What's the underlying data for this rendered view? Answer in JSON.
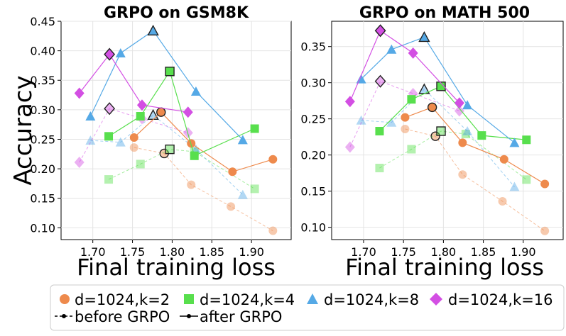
{
  "chart_data": [
    {
      "type": "scatter",
      "title": "GRPO on GSM8K",
      "xlabel": "Final training loss",
      "ylabel": "Accuracy",
      "xlim": [
        1.66,
        1.95
      ],
      "ylim": [
        0.08,
        0.45
      ],
      "xticks": [
        "1.70",
        "1.75",
        "1.80",
        "1.85",
        "1.90"
      ],
      "xtick_values": [
        1.7,
        1.75,
        1.8,
        1.85,
        1.9
      ],
      "yticks": [
        "0.10",
        "0.15",
        "0.20",
        "0.25",
        "0.30",
        "0.35",
        "0.40",
        "0.45"
      ],
      "ytick_values": [
        0.1,
        0.15,
        0.2,
        0.25,
        0.3,
        0.35,
        0.4,
        0.45
      ],
      "grid": true,
      "series": [
        {
          "name": "d=1024,k=2",
          "stage": "before GRPO",
          "color": "#ee8a4c",
          "marker": "circle",
          "x": [
            1.752,
            1.79,
            1.824,
            1.874,
            1.927
          ],
          "y": [
            0.236,
            0.226,
            0.173,
            0.136,
            0.095
          ],
          "best": 1
        },
        {
          "name": "d=1024,k=2",
          "stage": "after GRPO",
          "color": "#ee8a4c",
          "marker": "circle",
          "x": [
            1.752,
            1.786,
            1.824,
            1.876,
            1.927
          ],
          "y": [
            0.253,
            0.296,
            0.243,
            0.195,
            0.216
          ],
          "best": 1
        },
        {
          "name": "d=1024,k=4",
          "stage": "before GRPO",
          "color": "#58df4d",
          "marker": "square",
          "x": [
            1.72,
            1.76,
            1.797,
            1.828,
            1.904
          ],
          "y": [
            0.182,
            0.208,
            0.233,
            0.229,
            0.166
          ],
          "best": 2
        },
        {
          "name": "d=1024,k=4",
          "stage": "after GRPO",
          "color": "#58df4d",
          "marker": "square",
          "x": [
            1.72,
            1.76,
            1.797,
            1.828,
            1.904
          ],
          "y": [
            0.255,
            0.289,
            0.365,
            0.222,
            0.268
          ],
          "best": 2
        },
        {
          "name": "d=1024,k=8",
          "stage": "before GRPO",
          "color": "#55a9e6",
          "marker": "triangle",
          "x": [
            1.697,
            1.735,
            1.776,
            1.83,
            1.889
          ],
          "y": [
            0.248,
            0.245,
            0.291,
            0.233,
            0.156
          ],
          "best": 2
        },
        {
          "name": "d=1024,k=8",
          "stage": "after GRPO",
          "color": "#55a9e6",
          "marker": "triangle",
          "x": [
            1.697,
            1.735,
            1.776,
            1.83,
            1.889
          ],
          "y": [
            0.289,
            0.396,
            0.434,
            0.331,
            0.249
          ],
          "best": 2
        },
        {
          "name": "d=1024,k=16",
          "stage": "before GRPO",
          "color": "#d34fe3",
          "marker": "diamond",
          "x": [
            1.683,
            1.721,
            1.762,
            1.82
          ],
          "y": [
            0.211,
            0.302,
            0.285,
            0.261
          ],
          "best": 1
        },
        {
          "name": "d=1024,k=16",
          "stage": "after GRPO",
          "color": "#d34fe3",
          "marker": "diamond",
          "x": [
            1.683,
            1.721,
            1.762,
            1.82
          ],
          "y": [
            0.328,
            0.394,
            0.308,
            0.296
          ],
          "best": 1
        }
      ]
    },
    {
      "type": "scatter",
      "title": "GRPO on MATH 500",
      "xlabel": "Final training loss",
      "ylabel": "",
      "xlim": [
        1.66,
        1.95
      ],
      "ylim": [
        0.083,
        0.385
      ],
      "xticks": [
        "1.70",
        "1.75",
        "1.80",
        "1.85",
        "1.90"
      ],
      "xtick_values": [
        1.7,
        1.75,
        1.8,
        1.85,
        1.9
      ],
      "yticks": [
        "0.10",
        "0.15",
        "0.20",
        "0.25",
        "0.30",
        "0.35"
      ],
      "ytick_values": [
        0.1,
        0.15,
        0.2,
        0.25,
        0.3,
        0.35
      ],
      "grid": true,
      "series": [
        {
          "name": "d=1024,k=2",
          "stage": "before GRPO",
          "color": "#ee8a4c",
          "marker": "circle",
          "x": [
            1.752,
            1.79,
            1.824,
            1.874,
            1.927
          ],
          "y": [
            0.236,
            0.226,
            0.173,
            0.136,
            0.095
          ],
          "best": 1
        },
        {
          "name": "d=1024,k=2",
          "stage": "after GRPO",
          "color": "#ee8a4c",
          "marker": "circle",
          "x": [
            1.752,
            1.786,
            1.824,
            1.876,
            1.927
          ],
          "y": [
            0.252,
            0.266,
            0.217,
            0.194,
            0.16
          ],
          "best": 1
        },
        {
          "name": "d=1024,k=4",
          "stage": "before GRPO",
          "color": "#58df4d",
          "marker": "square",
          "x": [
            1.72,
            1.76,
            1.797,
            1.828,
            1.904
          ],
          "y": [
            0.182,
            0.208,
            0.233,
            0.229,
            0.166
          ],
          "best": 2
        },
        {
          "name": "d=1024,k=4",
          "stage": "after GRPO",
          "color": "#58df4d",
          "marker": "square",
          "x": [
            1.72,
            1.76,
            1.797,
            1.848,
            1.904
          ],
          "y": [
            0.233,
            0.277,
            0.295,
            0.227,
            0.221
          ],
          "best": 2
        },
        {
          "name": "d=1024,k=8",
          "stage": "before GRPO",
          "color": "#55a9e6",
          "marker": "triangle",
          "x": [
            1.697,
            1.735,
            1.776,
            1.83,
            1.889
          ],
          "y": [
            0.248,
            0.245,
            0.291,
            0.233,
            0.156
          ],
          "best": 2
        },
        {
          "name": "d=1024,k=8",
          "stage": "after GRPO",
          "color": "#55a9e6",
          "marker": "triangle",
          "x": [
            1.697,
            1.735,
            1.776,
            1.83,
            1.889
          ],
          "y": [
            0.305,
            0.346,
            0.363,
            0.269,
            0.217
          ],
          "best": 2
        },
        {
          "name": "d=1024,k=16",
          "stage": "before GRPO",
          "color": "#d34fe3",
          "marker": "diamond",
          "x": [
            1.683,
            1.721,
            1.762,
            1.82
          ],
          "y": [
            0.211,
            0.302,
            0.285,
            0.261
          ],
          "best": 1
        },
        {
          "name": "d=1024,k=16",
          "stage": "after GRPO",
          "color": "#d34fe3",
          "marker": "diamond",
          "x": [
            1.683,
            1.721,
            1.762,
            1.82
          ],
          "y": [
            0.274,
            0.372,
            0.341,
            0.272
          ],
          "best": 1
        }
      ]
    }
  ],
  "legend": {
    "entries": [
      {
        "label": "d=1024,k=2",
        "color": "#ee8a4c",
        "marker": "circle"
      },
      {
        "label": "d=1024,k=4",
        "color": "#58df4d",
        "marker": "square"
      },
      {
        "label": "d=1024,k=8",
        "color": "#55a9e6",
        "marker": "triangle"
      },
      {
        "label": "d=1024,k=16",
        "color": "#d34fe3",
        "marker": "diamond"
      }
    ],
    "styles": [
      {
        "label": "before GRPO",
        "line": "dashed"
      },
      {
        "label": "after GRPO",
        "line": "solid"
      }
    ]
  }
}
